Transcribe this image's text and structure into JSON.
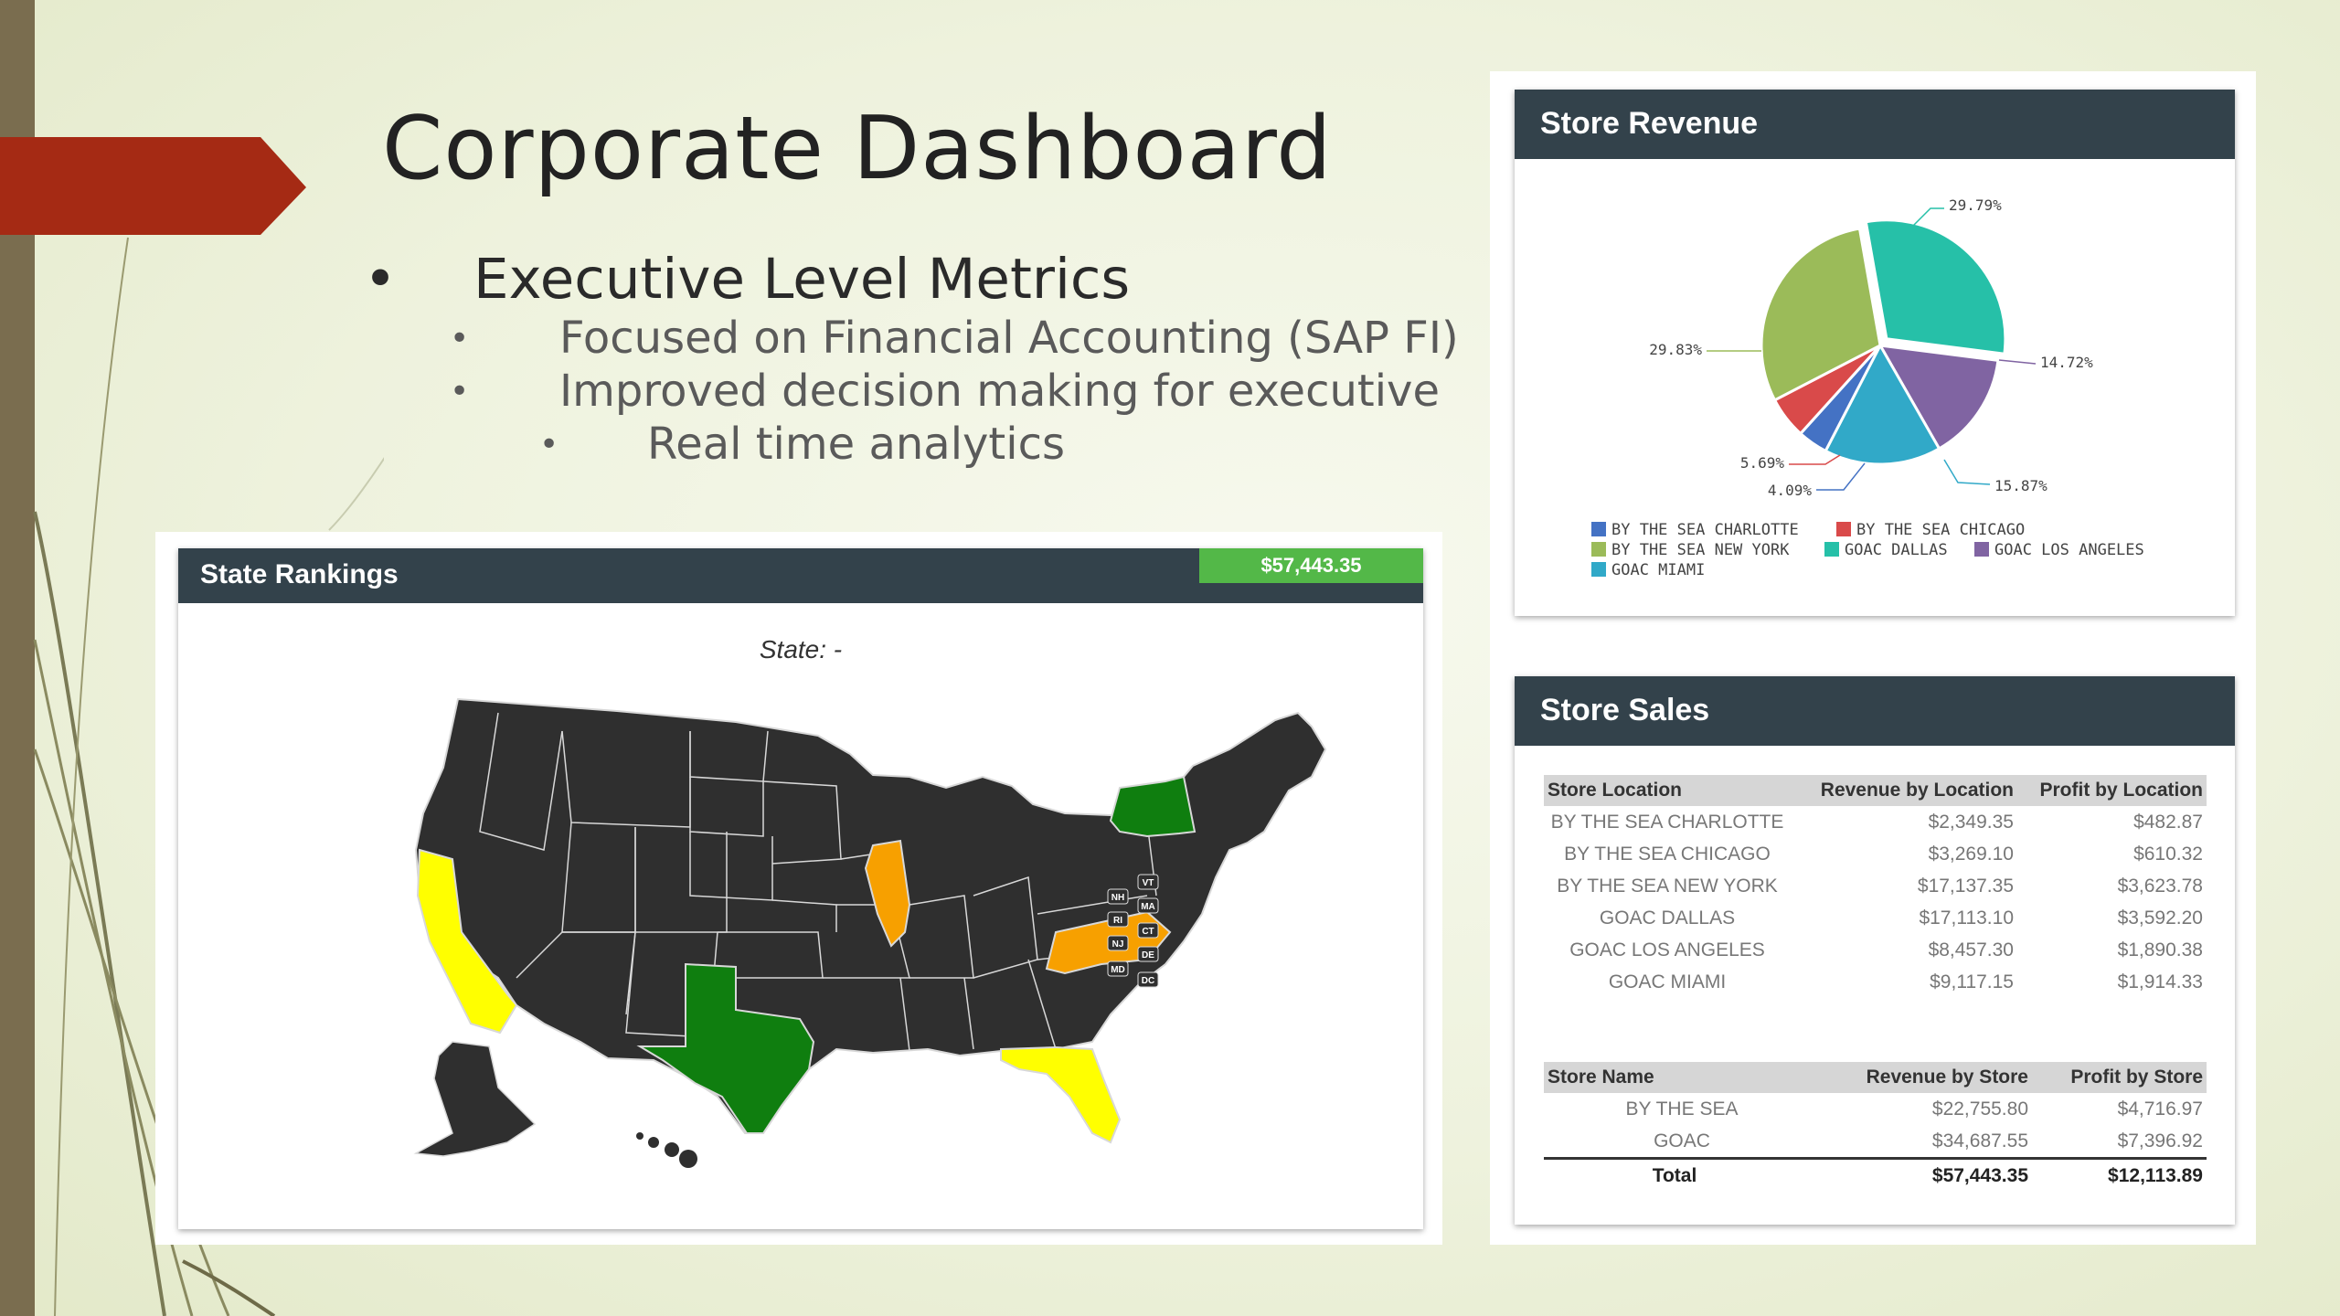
{
  "slide": {
    "title": "Corporate Dashboard",
    "bullets": [
      {
        "level": 1,
        "text": "Executive Level Metrics",
        "marker": "•"
      },
      {
        "level": 2,
        "text": "Focused on Financial Accounting (SAP FI)",
        "marker": "•"
      },
      {
        "level": 2,
        "text": "Improved decision making for executive",
        "marker": "•"
      },
      {
        "level": 3,
        "text": "Real time analytics",
        "marker": "•"
      }
    ],
    "accent_color": "#a52a14"
  },
  "state_rankings": {
    "title": "State Rankings",
    "total_badge": "$57,443.35",
    "state_label": "State: -",
    "small_state_tags": [
      "VT",
      "NH",
      "MA",
      "RI",
      "CT",
      "NJ",
      "DE",
      "MD",
      "DC"
    ],
    "colors": {
      "base": "#2f2f2f",
      "green": "#0f7e0f",
      "orange": "#f7a000",
      "yellow": "#ffff00"
    }
  },
  "store_revenue": {
    "title": "Store Revenue",
    "chart_data": {
      "type": "pie",
      "slices": [
        {
          "label": "BY THE SEA CHARLOTTE",
          "value": 4.09,
          "display": "4.09%",
          "color": "#4472c4"
        },
        {
          "label": "BY THE SEA CHICAGO",
          "value": 5.69,
          "display": "5.69%",
          "color": "#d94a4a"
        },
        {
          "label": "BY THE SEA NEW YORK",
          "value": 29.83,
          "display": "29.83%",
          "color": "#9bbb59"
        },
        {
          "label": "GOAC DALLAS",
          "value": 29.79,
          "display": "29.79%",
          "color": "#26c0a8"
        },
        {
          "label": "GOAC LOS ANGELES",
          "value": 14.72,
          "display": "14.72%",
          "color": "#8064a2"
        },
        {
          "label": "GOAC MIAMI",
          "value": 15.87,
          "display": "15.87%",
          "color": "#31a9c8"
        }
      ],
      "legend": [
        "BY THE SEA CHARLOTTE",
        "BY THE SEA CHICAGO",
        "BY THE SEA NEW YORK",
        "GOAC DALLAS",
        "GOAC LOS ANGELES",
        "GOAC MIAMI"
      ]
    }
  },
  "store_sales": {
    "title": "Store Sales",
    "location_table": {
      "headers": [
        "Store Location",
        "Revenue by Location",
        "Profit by Location"
      ],
      "rows": [
        [
          "BY THE SEA CHARLOTTE",
          "$2,349.35",
          "$482.87"
        ],
        [
          "BY THE SEA CHICAGO",
          "$3,269.10",
          "$610.32"
        ],
        [
          "BY THE SEA NEW YORK",
          "$17,137.35",
          "$3,623.78"
        ],
        [
          "GOAC DALLAS",
          "$17,113.10",
          "$3,592.20"
        ],
        [
          "GOAC LOS ANGELES",
          "$8,457.30",
          "$1,890.38"
        ],
        [
          "GOAC MIAMI",
          "$9,117.15",
          "$1,914.33"
        ]
      ]
    },
    "store_table": {
      "headers": [
        "Store Name",
        "Revenue by Store",
        "Profit by Store"
      ],
      "rows": [
        [
          "BY THE SEA",
          "$22,755.80",
          "$4,716.97"
        ],
        [
          "GOAC",
          "$34,687.55",
          "$7,396.92"
        ]
      ],
      "total": [
        "Total",
        "$57,443.35",
        "$12,113.89"
      ]
    }
  }
}
